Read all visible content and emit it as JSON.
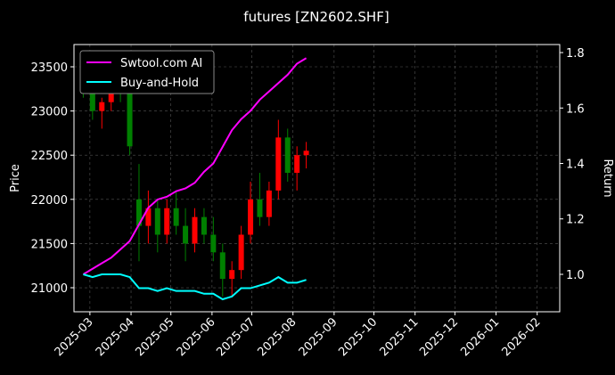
{
  "chart_data": {
    "type": "candlestick",
    "title": "futures [ZN2602.SHF]",
    "y_label": "Price",
    "y2_label": "Return",
    "x": [
      "2025-02-24",
      "2025-03-03",
      "2025-03-10",
      "2025-03-17",
      "2025-03-24",
      "2025-03-31",
      "2025-04-07",
      "2025-04-14",
      "2025-04-21",
      "2025-04-28",
      "2025-05-05",
      "2025-05-12",
      "2025-05-19",
      "2025-05-26",
      "2025-06-02",
      "2025-06-09",
      "2025-06-16",
      "2025-06-23",
      "2025-06-30",
      "2025-07-07",
      "2025-07-14",
      "2025-07-21",
      "2025-07-28",
      "2025-08-04",
      "2025-08-11"
    ],
    "open": [
      23350,
      23250,
      23000,
      23100,
      23350,
      23200,
      22000,
      21700,
      21900,
      21600,
      21900,
      21700,
      21500,
      21800,
      21600,
      21400,
      21100,
      21200,
      21600,
      22000,
      21800,
      22100,
      22700,
      22300,
      22500
    ],
    "high": [
      23500,
      23300,
      23150,
      23450,
      23400,
      23250,
      22400,
      22100,
      22000,
      22000,
      22100,
      21900,
      21900,
      21900,
      21800,
      21500,
      21300,
      21700,
      22200,
      22300,
      22200,
      22900,
      22800,
      22600,
      22650
    ],
    "low": [
      23150,
      22900,
      22800,
      23000,
      23100,
      22500,
      21300,
      21500,
      21400,
      21500,
      21600,
      21300,
      21400,
      21500,
      21300,
      20900,
      20900,
      21100,
      21500,
      21700,
      21700,
      22000,
      22200,
      22100,
      22350
    ],
    "close": [
      23250,
      23000,
      23100,
      23350,
      23200,
      22600,
      21700,
      21900,
      21600,
      21900,
      21700,
      21500,
      21800,
      21600,
      21400,
      21100,
      21200,
      21600,
      22000,
      21800,
      22100,
      22700,
      22300,
      22500,
      22550
    ],
    "up_color": "#ff0000",
    "down_color": "#008000",
    "series": [
      {
        "name": "Swtool.com AI",
        "color": "#ff00ff",
        "axis": "y2",
        "values": [
          1.0,
          1.02,
          1.04,
          1.06,
          1.09,
          1.12,
          1.18,
          1.24,
          1.27,
          1.28,
          1.3,
          1.31,
          1.33,
          1.37,
          1.4,
          1.46,
          1.52,
          1.56,
          1.59,
          1.63,
          1.66,
          1.69,
          1.72,
          1.76,
          1.78
        ]
      },
      {
        "name": "Buy-and-Hold",
        "color": "#00ffff",
        "axis": "y2",
        "values": [
          1.0,
          0.99,
          1.0,
          1.0,
          1.0,
          0.99,
          0.95,
          0.95,
          0.94,
          0.95,
          0.94,
          0.94,
          0.94,
          0.93,
          0.93,
          0.91,
          0.92,
          0.95,
          0.95,
          0.96,
          0.97,
          0.99,
          0.97,
          0.97,
          0.98
        ]
      }
    ],
    "xlim": [
      "2025-02-17",
      "2026-02-18"
    ],
    "xticks": [
      {
        "value": "2025-03-01",
        "label": "2025-03"
      },
      {
        "value": "2025-04-01",
        "label": "2025-04"
      },
      {
        "value": "2025-05-01",
        "label": "2025-05"
      },
      {
        "value": "2025-06-01",
        "label": "2025-06"
      },
      {
        "value": "2025-07-01",
        "label": "2025-07"
      },
      {
        "value": "2025-08-01",
        "label": "2025-08"
      },
      {
        "value": "2025-09-01",
        "label": "2025-09"
      },
      {
        "value": "2025-10-01",
        "label": "2025-10"
      },
      {
        "value": "2025-11-01",
        "label": "2025-11"
      },
      {
        "value": "2025-12-01",
        "label": "2025-12"
      },
      {
        "value": "2026-01-01",
        "label": "2026-01"
      },
      {
        "value": "2026-02-01",
        "label": "2026-02"
      }
    ],
    "ylim": [
      20728,
      23752
    ],
    "yticks": [
      21000,
      21500,
      22000,
      22500,
      23000,
      23500
    ],
    "y2lim": [
      0.865,
      1.829
    ],
    "y2ticks": [
      {
        "value": 1,
        "label": "1.0"
      },
      1.2,
      1.4,
      1.6,
      1.8
    ],
    "grid": true,
    "legend": "upper left"
  }
}
